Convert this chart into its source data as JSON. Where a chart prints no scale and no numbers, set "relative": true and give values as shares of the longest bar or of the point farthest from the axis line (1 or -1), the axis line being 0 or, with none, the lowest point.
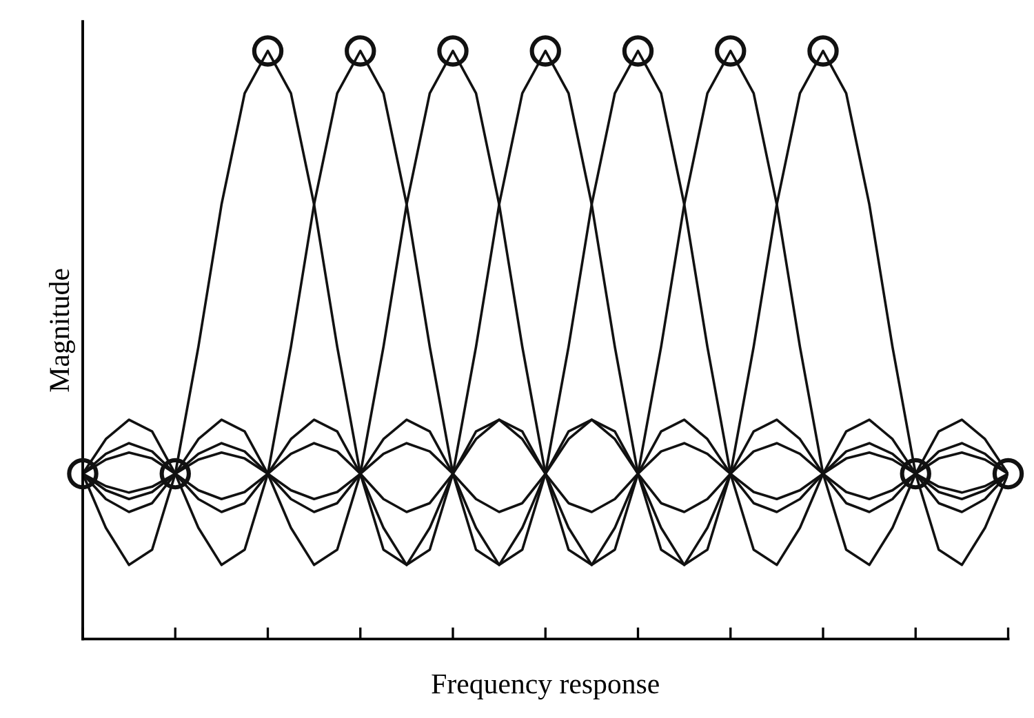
{
  "chart_data": {
    "type": "line",
    "relative": true,
    "xlabel": "Frequency response",
    "ylabel": "Magnitude",
    "categories": [
      null,
      null,
      null,
      null,
      null,
      null,
      null,
      null,
      null,
      null,
      null,
      null,
      null,
      null,
      null,
      null,
      null,
      null,
      null,
      null,
      null,
      null,
      null,
      null,
      null,
      null,
      null,
      null,
      null,
      null,
      null,
      null,
      null,
      null,
      null,
      null,
      null,
      null,
      null,
      null,
      null
    ],
    "tick_labels": false,
    "grid": false,
    "legend": false,
    "line_style": "solid",
    "series": [
      {
        "color": "#111111",
        "values": [
          0.281,
          0.189,
          0.126,
          0.152,
          0.281,
          0.497,
          0.739,
          0.928,
          1,
          0.928,
          0.739,
          0.497,
          0.281,
          0.152,
          0.126,
          0.189,
          0.281,
          0.353,
          0.373,
          0.34,
          0.281,
          0.231,
          0.216,
          0.238,
          0.281,
          0.319,
          0.333,
          0.315,
          0.281,
          0.25,
          0.238,
          0.253,
          0.281,
          0.307,
          0.317,
          0.305,
          0.281,
          0.259,
          0.249,
          0.26,
          0.281
        ]
      },
      {
        "color": "#111111",
        "values": [
          0.281,
          0.34,
          0.373,
          0.353,
          0.281,
          0.189,
          0.126,
          0.152,
          0.281,
          0.497,
          0.739,
          0.928,
          1,
          0.928,
          0.739,
          0.497,
          0.281,
          0.152,
          0.126,
          0.189,
          0.281,
          0.353,
          0.373,
          0.34,
          0.281,
          0.231,
          0.216,
          0.238,
          0.281,
          0.319,
          0.333,
          0.315,
          0.281,
          0.25,
          0.238,
          0.253,
          0.281,
          0.307,
          0.317,
          0.305,
          0.281
        ]
      },
      {
        "color": "#111111",
        "values": [
          0.281,
          0.238,
          0.216,
          0.231,
          0.281,
          0.34,
          0.373,
          0.353,
          0.281,
          0.189,
          0.126,
          0.152,
          0.281,
          0.497,
          0.739,
          0.928,
          1,
          0.928,
          0.739,
          0.497,
          0.281,
          0.152,
          0.126,
          0.189,
          0.281,
          0.353,
          0.373,
          0.34,
          0.281,
          0.231,
          0.216,
          0.238,
          0.281,
          0.319,
          0.333,
          0.315,
          0.281,
          0.25,
          0.238,
          0.253,
          0.281
        ]
      },
      {
        "color": "#111111",
        "values": [
          0.281,
          0.315,
          0.333,
          0.319,
          0.281,
          0.238,
          0.216,
          0.231,
          0.281,
          0.34,
          0.373,
          0.353,
          0.281,
          0.189,
          0.126,
          0.152,
          0.281,
          0.497,
          0.739,
          0.928,
          1,
          0.928,
          0.739,
          0.497,
          0.281,
          0.152,
          0.126,
          0.189,
          0.281,
          0.353,
          0.373,
          0.34,
          0.281,
          0.231,
          0.216,
          0.238,
          0.281,
          0.319,
          0.333,
          0.315,
          0.281
        ]
      },
      {
        "color": "#111111",
        "values": [
          0.281,
          0.253,
          0.238,
          0.25,
          0.281,
          0.315,
          0.333,
          0.319,
          0.281,
          0.238,
          0.216,
          0.231,
          0.281,
          0.34,
          0.373,
          0.353,
          0.281,
          0.189,
          0.126,
          0.152,
          0.281,
          0.497,
          0.739,
          0.928,
          1,
          0.928,
          0.739,
          0.497,
          0.281,
          0.152,
          0.126,
          0.189,
          0.281,
          0.353,
          0.373,
          0.34,
          0.281,
          0.231,
          0.216,
          0.238,
          0.281
        ]
      },
      {
        "color": "#111111",
        "values": [
          0.281,
          0.305,
          0.317,
          0.307,
          0.281,
          0.253,
          0.238,
          0.25,
          0.281,
          0.315,
          0.333,
          0.319,
          0.281,
          0.238,
          0.216,
          0.231,
          0.281,
          0.34,
          0.373,
          0.353,
          0.281,
          0.189,
          0.126,
          0.152,
          0.281,
          0.497,
          0.739,
          0.928,
          1,
          0.928,
          0.739,
          0.497,
          0.281,
          0.152,
          0.126,
          0.189,
          0.281,
          0.353,
          0.373,
          0.34,
          0.281
        ]
      },
      {
        "color": "#111111",
        "values": [
          0.281,
          0.26,
          0.249,
          0.259,
          0.281,
          0.305,
          0.317,
          0.307,
          0.281,
          0.253,
          0.238,
          0.25,
          0.281,
          0.315,
          0.333,
          0.319,
          0.281,
          0.238,
          0.216,
          0.231,
          0.281,
          0.34,
          0.373,
          0.353,
          0.281,
          0.189,
          0.126,
          0.152,
          0.281,
          0.497,
          0.739,
          0.928,
          1,
          0.928,
          0.739,
          0.497,
          0.281,
          0.152,
          0.126,
          0.189,
          0.281
        ]
      }
    ]
  }
}
